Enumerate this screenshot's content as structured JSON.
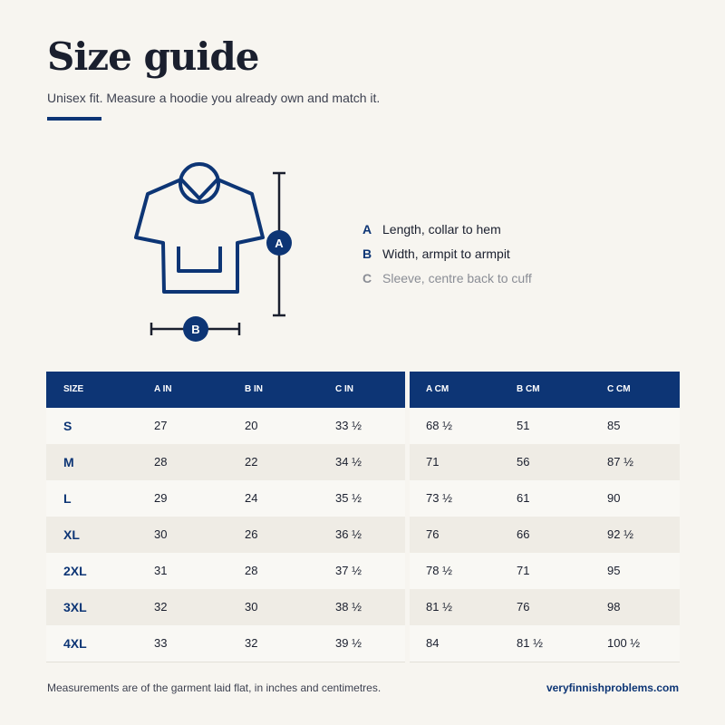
{
  "header": {
    "title": "Size guide",
    "subtitle": "Unisex fit. Measure a hoodie you already own and match it."
  },
  "diagram": {
    "badges": [
      "A",
      "B"
    ]
  },
  "legend": [
    {
      "key": "A",
      "text": "Length, collar to hem"
    },
    {
      "key": "B",
      "text": "Width, armpit to armpit"
    },
    {
      "key": "C",
      "text": "Sleeve, centre back to cuff"
    }
  ],
  "table": {
    "columns": [
      "SIZE",
      "A IN",
      "B IN",
      "C IN",
      "A CM",
      "B CM",
      "C CM"
    ],
    "rows": [
      [
        "S",
        "27",
        "20",
        "33 ½",
        "68 ½",
        "51",
        "85"
      ],
      [
        "M",
        "28",
        "22",
        "34 ½",
        "71",
        "56",
        "87 ½"
      ],
      [
        "L",
        "29",
        "24",
        "35 ½",
        "73 ½",
        "61",
        "90"
      ],
      [
        "XL",
        "30",
        "26",
        "36 ½",
        "76",
        "66",
        "92 ½"
      ],
      [
        "2XL",
        "31",
        "28",
        "37 ½",
        "78 ½",
        "71",
        "95"
      ],
      [
        "3XL",
        "32",
        "30",
        "38 ½",
        "81 ½",
        "76",
        "98"
      ],
      [
        "4XL",
        "33",
        "32",
        "39 ½",
        "84",
        "81 ½",
        "100 ½"
      ]
    ]
  },
  "footer": {
    "note": "Measurements are of the garment laid flat, in inches and centimetres.",
    "link": "veryfinnishproblems.com"
  }
}
